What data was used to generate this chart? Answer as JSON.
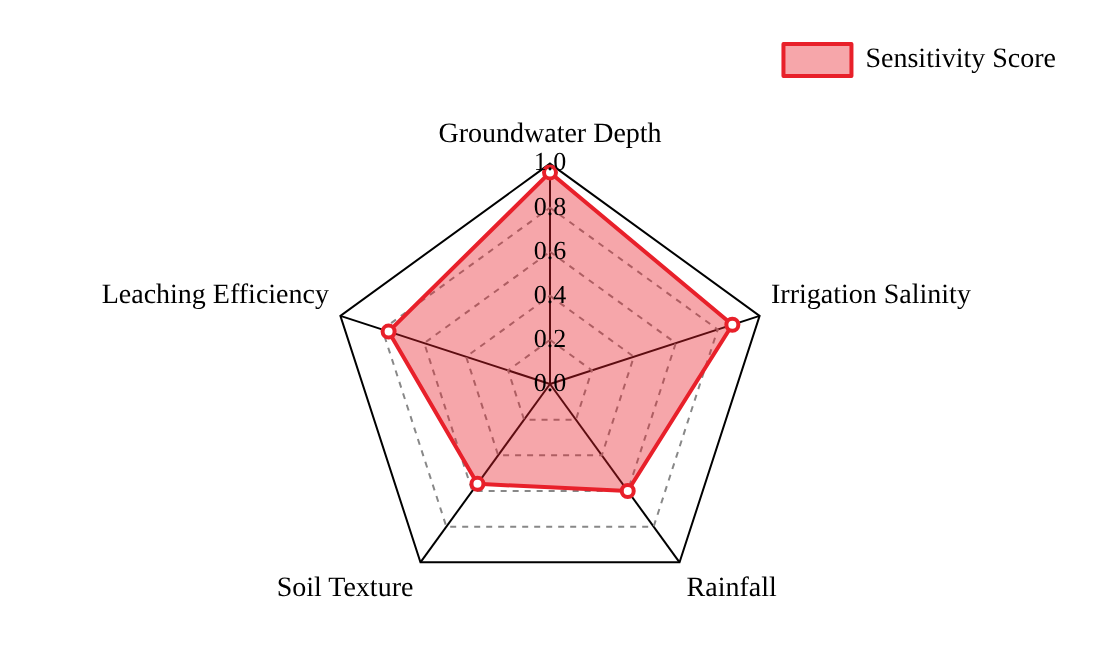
{
  "chart_data": {
    "type": "radar",
    "categories": [
      "Groundwater Depth",
      "Irrigation Salinity",
      "Rainfall",
      "Soil Texture",
      "Leaching Efficiency"
    ],
    "series": [
      {
        "name": "Sensitivity Score",
        "color": "#e8202a",
        "values": [
          0.96,
          0.87,
          0.6,
          0.56,
          0.77
        ]
      }
    ],
    "ylim": [
      0,
      1
    ],
    "yticks": [
      {
        "value": 0,
        "label": "0.0"
      },
      {
        "value": 0.2,
        "label": "0.2"
      },
      {
        "value": 0.4,
        "label": "0.4"
      },
      {
        "value": 0.6,
        "label": "0.6"
      },
      {
        "value": 0.8,
        "label": "0.8"
      },
      {
        "value": 1,
        "label": "1.0"
      }
    ],
    "grid": true,
    "legend": "top right",
    "marker": "circle",
    "line_style": "solid"
  }
}
